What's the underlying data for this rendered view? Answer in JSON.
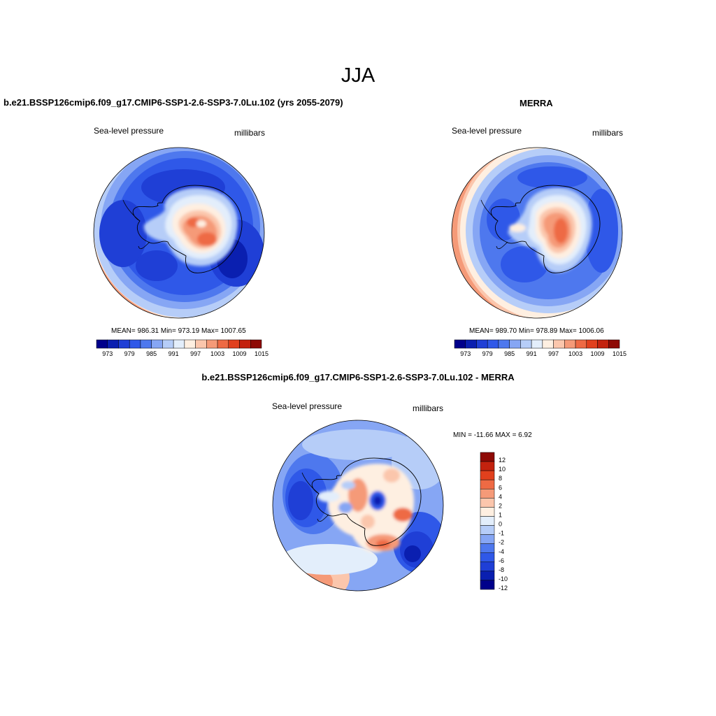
{
  "figure": {
    "season_title": "JJA",
    "colors": {
      "palette": [
        "#00008B",
        "#0A1FB0",
        "#1F3FD6",
        "#2F58E8",
        "#4E78EE",
        "#86A6F4",
        "#B6CDF8",
        "#E3EEFB",
        "#FEEFE1",
        "#FBC6AC",
        "#F59A78",
        "#EE6A44",
        "#E1401D",
        "#C3220E",
        "#8E0A05"
      ],
      "diff_palette": [
        "#00008B",
        "#0A1FB0",
        "#1F3FD6",
        "#2F58E8",
        "#4E78EE",
        "#86A6F4",
        "#B6CDF8",
        "#E3EEFB",
        "#FEEFE1",
        "#FBC6AC",
        "#F59A78",
        "#EE6A44",
        "#E1401D",
        "#C3220E",
        "#8E0A05"
      ]
    }
  },
  "panels": {
    "model": {
      "title": "b.e21.BSSP126cmip6.f09_g17.CMIP6-SSP1-2.6-SSP3-7.0Lu.102 (yrs 2055-2079)",
      "variable_label": "Sea-level pressure",
      "units_label": "millibars",
      "stats_text": "MEAN= 986.31  Min= 973.19  Max= 1007.65",
      "colorbar_ticks": [
        "973",
        "979",
        "985",
        "991",
        "997",
        "1003",
        "1009",
        "1015"
      ]
    },
    "obs": {
      "title": "MERRA",
      "variable_label": "Sea-level pressure",
      "units_label": "millibars",
      "stats_text": "MEAN= 989.70  Min= 978.89  Max= 1006.06",
      "colorbar_ticks": [
        "973",
        "979",
        "985",
        "991",
        "997",
        "1003",
        "1009",
        "1015"
      ]
    },
    "diff": {
      "title": "b.e21.BSSP126cmip6.f09_g17.CMIP6-SSP1-2.6-SSP3-7.0Lu.102 - MERRA",
      "variable_label": "Sea-level pressure",
      "units_label": "millibars",
      "stats_text": "MIN = -11.66 MAX =   6.92",
      "colorbar_ticks": [
        "12",
        "10",
        "8",
        "6",
        "4",
        "2",
        "1",
        "0",
        "-1",
        "-2",
        "-4",
        "-6",
        "-8",
        "-10",
        "-12"
      ]
    }
  },
  "chart_data": [
    {
      "type": "heatmap",
      "title": "b.e21.BSSP126cmip6.f09_g17.CMIP6-SSP1-2.6-SSP3-7.0Lu.102 (yrs 2055-2079)",
      "variable": "Sea-level pressure",
      "units": "millibars",
      "projection": "south polar stereographic",
      "mean": 986.31,
      "min": 973.19,
      "max": 1007.65,
      "levels": [
        973,
        976,
        979,
        982,
        985,
        988,
        991,
        994,
        997,
        1000,
        1003,
        1006,
        1009,
        1012,
        1015
      ]
    },
    {
      "type": "heatmap",
      "title": "MERRA",
      "variable": "Sea-level pressure",
      "units": "millibars",
      "projection": "south polar stereographic",
      "mean": 989.7,
      "min": 978.89,
      "max": 1006.06,
      "levels": [
        973,
        976,
        979,
        982,
        985,
        988,
        991,
        994,
        997,
        1000,
        1003,
        1006,
        1009,
        1012,
        1015
      ]
    },
    {
      "type": "heatmap",
      "title": "b.e21.BSSP126cmip6.f09_g17.CMIP6-SSP1-2.6-SSP3-7.0Lu.102 - MERRA",
      "variable": "Sea-level pressure",
      "units": "millibars",
      "projection": "south polar stereographic",
      "min": -11.66,
      "max": 6.92,
      "levels": [
        -12,
        -10,
        -8,
        -6,
        -4,
        -2,
        -1,
        0,
        1,
        2,
        4,
        6,
        8,
        10,
        12
      ]
    }
  ]
}
